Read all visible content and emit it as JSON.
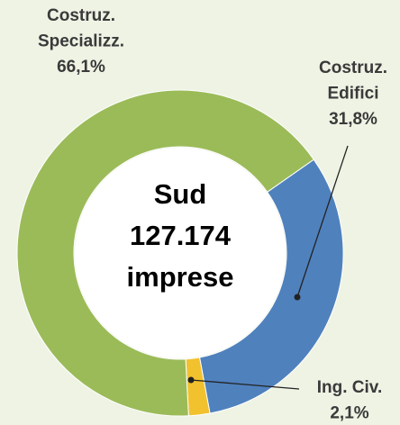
{
  "chart_data": {
    "type": "donut",
    "categories": [
      [
        "Costruz.",
        "Edifici"
      ],
      [
        "Ing. Civ."
      ],
      [
        "Costruz.",
        "Specializz."
      ]
    ],
    "values": [
      31.8,
      2.1,
      66.1
    ],
    "value_labels": [
      "31,8%",
      "2,1%",
      "66,1%"
    ],
    "colors": [
      "#4f81bd",
      "#f2c12e",
      "#9bbb59"
    ],
    "center_text": [
      "Sud",
      "127.174",
      "imprese"
    ]
  }
}
